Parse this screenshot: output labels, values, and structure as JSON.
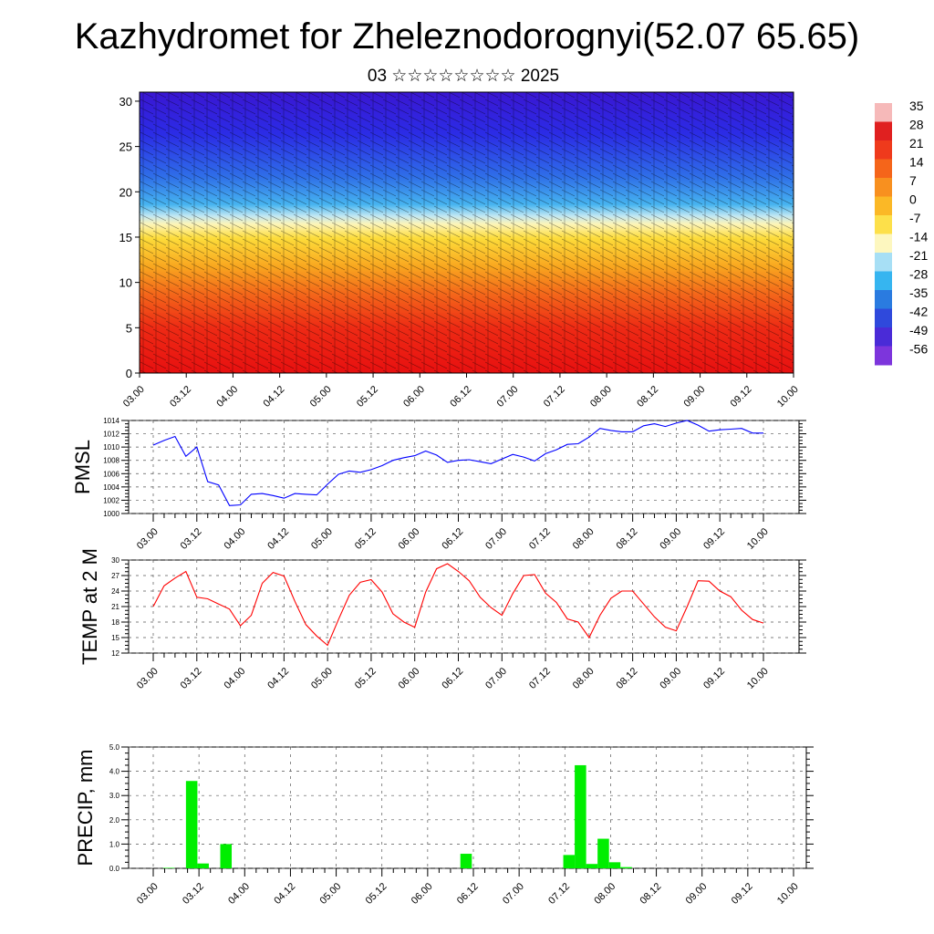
{
  "header": {
    "title": "Kazhydromet for Zheleznodorognyi(52.07 65.65)",
    "date": "03 ☆☆☆☆☆☆☆☆ 2025"
  },
  "chart_data": [
    {
      "type": "heatmap",
      "name": "temperature-wind-cross-section",
      "x_ticks": [
        "03.00",
        "03.12",
        "04.00",
        "04.12",
        "05.00",
        "05.12",
        "06.00",
        "06.12",
        "07.00",
        "07.12",
        "08.00",
        "08.12",
        "09.00",
        "09.12",
        "10.00"
      ],
      "y_ticks": [
        "0",
        "5",
        "10",
        "15",
        "20",
        "25",
        "30"
      ],
      "ylim": [
        0,
        31
      ],
      "colorbar": {
        "labels": [
          "35",
          "28",
          "21",
          "14",
          "7",
          "0",
          "-7",
          "-14",
          "-21",
          "-28",
          "-35",
          "-42",
          "-49",
          "-56"
        ],
        "colors": [
          "#f6b9b9",
          "#e02020",
          "#ef3a1c",
          "#f5651a",
          "#f8901f",
          "#fbb826",
          "#fde04a",
          "#fdf7bf",
          "#a7dff5",
          "#36b5f0",
          "#2a7be0",
          "#2f49dc",
          "#4a2bd7",
          "#7d35dc"
        ]
      },
      "grid": false
    },
    {
      "type": "line",
      "name": "pmsl",
      "ylabel": "PMSL",
      "ylim": [
        1000,
        1014
      ],
      "y_ticks": [
        "1000",
        "1002",
        "1004",
        "1006",
        "1008",
        "1010",
        "1012",
        "1014"
      ],
      "x_ticks": [
        "03.00",
        "03.12",
        "04.00",
        "04.12",
        "05.00",
        "05.12",
        "06.00",
        "06.12",
        "07.00",
        "07.12",
        "08.00",
        "08.12",
        "09.00",
        "09.12",
        "10.00"
      ],
      "color": "#0000ff",
      "series": [
        {
          "values": [
            1010.3,
            1011.0,
            1011.6,
            1008.6,
            1010.0,
            1004.8,
            1004.3,
            1001.2,
            1001.3,
            1002.9,
            1003.0,
            1002.7,
            1002.3,
            1003.0,
            1002.9,
            1002.8,
            1004.4,
            1005.9,
            1006.4,
            1006.2,
            1006.6,
            1007.2,
            1008.0,
            1008.4,
            1008.7,
            1009.4,
            1008.8,
            1007.7,
            1008.0,
            1008.1,
            1007.8,
            1007.5,
            1008.2,
            1008.9,
            1008.5,
            1007.9,
            1009.0,
            1009.6,
            1010.4,
            1010.5,
            1011.5,
            1012.8,
            1012.5,
            1012.3,
            1012.3,
            1013.2,
            1013.5,
            1013.1,
            1013.6,
            1014.0,
            1013.3,
            1012.4,
            1012.6,
            1012.7,
            1012.8,
            1012.1,
            1012.1
          ]
        }
      ],
      "grid": true
    },
    {
      "type": "line",
      "name": "temp-2m",
      "ylabel": "TEMP at 2 M",
      "ylim": [
        12,
        30
      ],
      "y_ticks": [
        "12",
        "15",
        "18",
        "21",
        "24",
        "27",
        "30"
      ],
      "x_ticks": [
        "03.00",
        "03.12",
        "04.00",
        "04.12",
        "05.00",
        "05.12",
        "06.00",
        "06.12",
        "07.00",
        "07.12",
        "08.00",
        "08.12",
        "09.00",
        "09.12",
        "10.00"
      ],
      "color": "#ff0000",
      "series": [
        {
          "values": [
            21.0,
            25.0,
            26.5,
            27.8,
            22.8,
            22.5,
            21.5,
            20.5,
            17.3,
            19.3,
            25.5,
            27.6,
            26.9,
            22.0,
            17.5,
            15.3,
            13.5,
            18.5,
            23.2,
            25.7,
            26.2,
            23.8,
            19.6,
            18.0,
            17.0,
            23.8,
            28.3,
            29.3,
            27.8,
            26.0,
            22.8,
            20.8,
            19.3,
            23.5,
            27.0,
            27.2,
            23.6,
            21.8,
            18.6,
            18.0,
            15.0,
            19.3,
            22.6,
            24.0,
            24.0,
            21.5,
            19.0,
            17.0,
            16.3,
            21.0,
            26.0,
            25.9,
            24.0,
            22.9,
            20.3,
            18.5,
            17.8
          ]
        }
      ],
      "grid": true
    },
    {
      "type": "bar",
      "name": "precip",
      "ylabel": "PRECIP, mm",
      "ylim": [
        0,
        5
      ],
      "y_ticks": [
        "0.0",
        "1.0",
        "2.0",
        "3.0",
        "4.0",
        "5.0"
      ],
      "x_ticks": [
        "03.00",
        "03.12",
        "04.00",
        "04.12",
        "05.00",
        "05.12",
        "06.00",
        "06.12",
        "07.00",
        "07.12",
        "08.00",
        "08.12",
        "09.00",
        "09.12",
        "10.00"
      ],
      "color": "#00ee00",
      "series": [
        {
          "values": [
            0,
            0,
            0.02,
            0,
            3.6,
            0.2,
            0,
            1.0,
            0,
            0,
            0,
            0,
            0,
            0,
            0,
            0,
            0,
            0,
            0,
            0,
            0,
            0,
            0,
            0,
            0,
            0,
            0,
            0,
            0.6,
            0,
            0,
            0,
            0,
            0,
            0,
            0,
            0,
            0.55,
            4.25,
            0.18,
            1.22,
            0.25,
            0.05,
            0,
            0,
            0,
            0,
            0,
            0,
            0,
            0,
            0,
            0,
            0,
            0,
            0,
            0
          ]
        }
      ],
      "grid": true
    }
  ]
}
